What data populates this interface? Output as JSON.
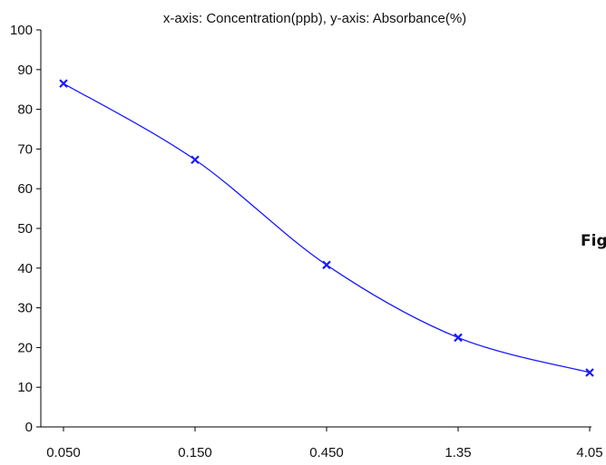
{
  "chart_data": {
    "type": "line",
    "title": "x-axis: Concentration(ppb), y-axis: Absorbance(%)",
    "xlabel": "",
    "ylabel": "",
    "categories": [
      "0.050",
      "0.150",
      "0.450",
      "1.35",
      "4.05"
    ],
    "series": [
      {
        "values": [
          86.5,
          67.3,
          40.8,
          22.5,
          13.7
        ],
        "color": "#1a1aff",
        "marker": "x",
        "smooth": true
      }
    ],
    "ylim": [
      0,
      100
    ],
    "yticks": [
      "0",
      "10",
      "20",
      "30",
      "40",
      "50",
      "60",
      "70",
      "80",
      "90",
      "100"
    ],
    "grid": false,
    "legend": "none"
  },
  "side_label": "Fig"
}
